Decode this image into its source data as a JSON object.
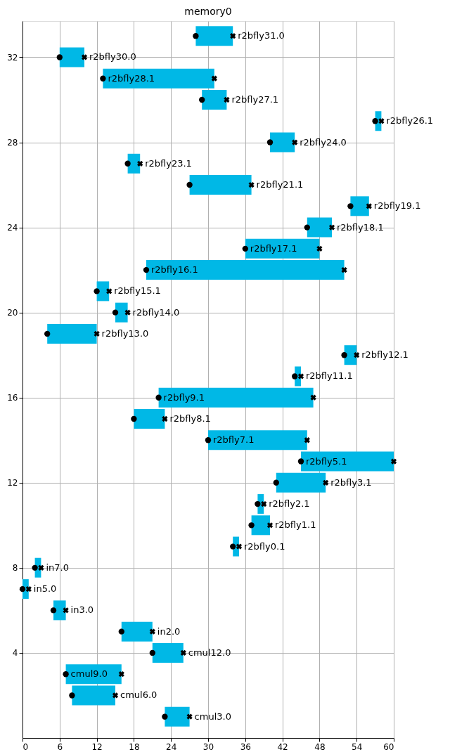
{
  "chart_data": {
    "type": "bar",
    "orientation": "horizontal",
    "title": "memory0",
    "x": [
      1,
      2,
      3,
      4,
      5,
      6,
      7,
      8,
      9,
      10,
      11,
      12,
      13,
      14,
      15,
      16,
      17,
      18,
      19,
      20,
      21,
      22,
      23,
      24,
      25,
      26,
      27,
      28,
      29,
      30,
      31,
      32,
      33
    ],
    "series": [
      {
        "color": "#00b8e6",
        "base": [
          23,
          8,
          7,
          21,
          16,
          5,
          0,
          2,
          34,
          37,
          38,
          41,
          45,
          30,
          18,
          22,
          44,
          52,
          4,
          15,
          12,
          20,
          36,
          46,
          53,
          27,
          17,
          40,
          57,
          29,
          13,
          6,
          28
        ],
        "values": [
          4,
          7,
          9,
          5,
          5,
          2,
          1,
          1,
          1,
          3,
          1,
          8,
          15,
          16,
          5,
          25,
          1,
          2,
          8,
          2,
          2,
          32,
          12,
          4,
          3,
          10,
          2,
          4,
          1,
          4,
          18,
          4,
          6
        ]
      },
      {
        "type": "scatter",
        "marker": "circle",
        "color": "#000000",
        "values": [
          23,
          8,
          7,
          21,
          16,
          5,
          0,
          2,
          34,
          37,
          38,
          41,
          45,
          30,
          18,
          22,
          44,
          52,
          4,
          15,
          12,
          20,
          36,
          46,
          53,
          27,
          17,
          40,
          57,
          29,
          13,
          6,
          28
        ]
      },
      {
        "type": "scatter",
        "marker": "cross",
        "color": "#000000",
        "values": [
          27,
          15,
          16,
          26,
          21,
          7,
          1,
          3,
          35,
          40,
          39,
          49,
          60,
          46,
          23,
          47,
          45,
          54,
          12,
          17,
          14,
          52,
          48,
          50,
          56,
          37,
          19,
          44,
          58,
          33,
          31,
          10,
          34
        ]
      }
    ],
    "xlim": [
      0,
      60
    ],
    "xticks": [
      0,
      6,
      12,
      18,
      24,
      30,
      36,
      42,
      48,
      54,
      60
    ],
    "ylim": [
      0,
      33.7
    ],
    "yticks": [
      4,
      8,
      12,
      16,
      20,
      24,
      28,
      32
    ],
    "grid": true,
    "annotations": [
      {
        "text": "cmul3.0",
        "x": 27,
        "y": 1
      },
      {
        "text": "cmul6.0",
        "x": 15,
        "y": 2
      },
      {
        "text": "cmul9.0",
        "x": 7,
        "y": 3
      },
      {
        "text": "cmul12.0",
        "x": 26,
        "y": 4
      },
      {
        "text": "in2.0",
        "x": 21,
        "y": 5
      },
      {
        "text": "in3.0",
        "x": 7,
        "y": 6
      },
      {
        "text": "in5.0",
        "x": 1,
        "y": 7
      },
      {
        "text": "in7.0",
        "x": 3,
        "y": 8
      },
      {
        "text": "r2bfly0.1",
        "x": 35,
        "y": 9
      },
      {
        "text": "r2bfly1.1",
        "x": 40,
        "y": 10
      },
      {
        "text": "r2bfly2.1",
        "x": 39,
        "y": 11
      },
      {
        "text": "r2bfly3.1",
        "x": 49,
        "y": 12
      },
      {
        "text": "r2bfly5.1",
        "x": 45,
        "y": 13
      },
      {
        "text": "r2bfly7.1",
        "x": 30,
        "y": 14
      },
      {
        "text": "r2bfly8.1",
        "x": 23,
        "y": 15
      },
      {
        "text": "r2bfly9.1",
        "x": 22,
        "y": 16
      },
      {
        "text": "r2bfly11.1",
        "x": 45,
        "y": 17
      },
      {
        "text": "r2bfly12.1",
        "x": 54,
        "y": 18
      },
      {
        "text": "r2bfly13.0",
        "x": 12,
        "y": 19
      },
      {
        "text": "r2bfly14.0",
        "x": 17,
        "y": 20
      },
      {
        "text": "r2bfly15.1",
        "x": 14,
        "y": 21
      },
      {
        "text": "r2bfly16.1",
        "x": 20,
        "y": 22
      },
      {
        "text": "r2bfly17.1",
        "x": 36,
        "y": 23
      },
      {
        "text": "r2bfly18.1",
        "x": 50,
        "y": 24
      },
      {
        "text": "r2bfly19.1",
        "x": 56,
        "y": 25
      },
      {
        "text": "r2bfly21.1",
        "x": 37,
        "y": 26
      },
      {
        "text": "r2bfly23.1",
        "x": 19,
        "y": 27
      },
      {
        "text": "r2bfly24.0",
        "x": 44,
        "y": 28
      },
      {
        "text": "r2bfly26.1",
        "x": 58,
        "y": 29
      },
      {
        "text": "r2bfly27.1",
        "x": 33,
        "y": 30
      },
      {
        "text": "r2bfly28.1",
        "x": 13,
        "y": 31
      },
      {
        "text": "r2bfly30.0",
        "x": 10,
        "y": 32
      },
      {
        "text": "r2bfly31.0",
        "x": 34,
        "y": 33
      }
    ]
  }
}
